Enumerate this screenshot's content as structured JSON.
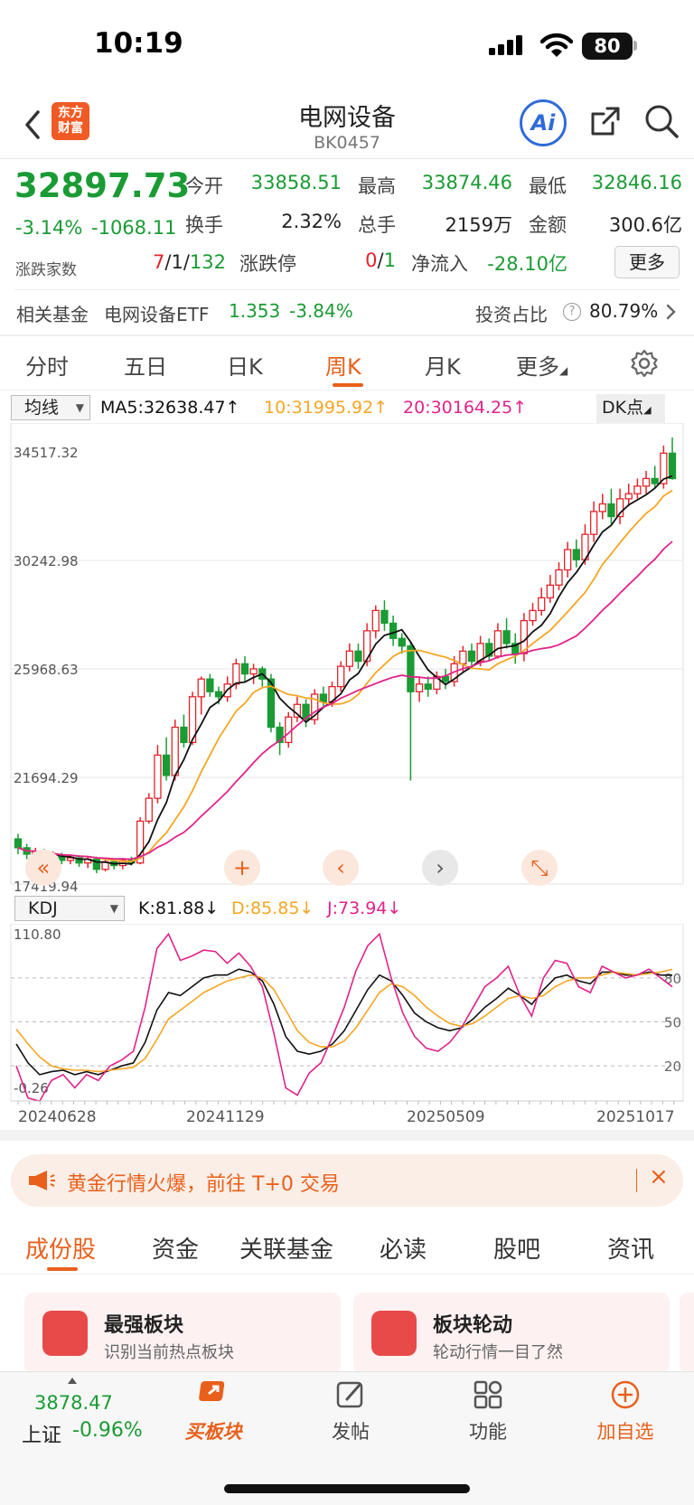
{
  "status_bar": {
    "time": "10:19",
    "battery": "80"
  },
  "nav": {
    "title": "电网设备",
    "code": "BK0457",
    "logo_line1": "东方",
    "logo_line2": "财富",
    "ai_label": "Ai"
  },
  "quote": {
    "price": "32897.73",
    "change_pct": "-3.14%",
    "change_amt": "-1068.11",
    "counts_label": "涨跌家数",
    "counts_up": "7",
    "counts_mid": "1",
    "counts_down": "132",
    "limit_label": "涨跌停",
    "limit_up": "0",
    "limit_down": "1",
    "open_label": "今开",
    "open": "33858.51",
    "high_label": "最高",
    "high": "33874.46",
    "low_label": "最低",
    "low": "32846.16",
    "turnover_label": "换手",
    "turnover": "2.32%",
    "volume_label": "总手",
    "volume": "2159万",
    "amount_label": "金额",
    "amount": "300.6亿",
    "inflow_label": "净流入",
    "inflow": "-28.10亿",
    "more_label": "更多"
  },
  "fund": {
    "label": "相关基金",
    "name": "电网设备ETF",
    "price": "1.353",
    "change": "-3.84%",
    "ratio_label": "投资占比",
    "ratio": "80.79%"
  },
  "period_tabs": [
    "分时",
    "五日",
    "日K",
    "周K",
    "月K",
    "更多"
  ],
  "active_period": "周K",
  "ma_row": {
    "selector": "均线",
    "ma5": "MA5:32638.47↑",
    "ma10": "10:31995.92↑",
    "ma20": "20:30164.25↑",
    "dk": "DK点"
  },
  "kdj_row": {
    "selector": "KDJ",
    "k": "K:81.88↓",
    "d": "D:85.85↓",
    "j": "J:73.94↓"
  },
  "colors": {
    "up": "#e3242b",
    "down": "#1a9b34",
    "ma5": "#111111",
    "ma10": "#f5a623",
    "ma20": "#e0238a",
    "accent": "#e8601c"
  },
  "chart_data": [
    {
      "type": "candlestick",
      "title": "",
      "y_ticks": [
        "34517.32",
        "30242.98",
        "25968.63",
        "21694.29",
        "17419.94"
      ],
      "x_ticks": [
        "20240628",
        "20241129",
        "20250509",
        "20251017"
      ],
      "candles": [
        [
          18700,
          18350,
          18900,
          18100
        ],
        [
          18350,
          18100,
          18500,
          17900
        ],
        [
          18100,
          18200,
          18350,
          17950
        ],
        [
          18200,
          17900,
          18300,
          17700
        ],
        [
          17900,
          18050,
          18200,
          17800
        ],
        [
          18050,
          17850,
          18150,
          17700
        ],
        [
          17850,
          17950,
          18050,
          17700
        ],
        [
          17950,
          17750,
          18050,
          17600
        ],
        [
          17750,
          17900,
          18000,
          17550
        ],
        [
          17900,
          17500,
          18000,
          17350
        ],
        [
          17500,
          17800,
          17900,
          17420
        ],
        [
          17800,
          17650,
          17900,
          17500
        ],
        [
          17650,
          17850,
          17950,
          17500
        ],
        [
          17850,
          17750,
          18000,
          17650
        ],
        [
          17750,
          19400,
          19550,
          17700
        ],
        [
          19400,
          20300,
          20500,
          19300
        ],
        [
          20300,
          22000,
          22400,
          20100
        ],
        [
          22000,
          21200,
          22700,
          21000
        ],
        [
          21200,
          23100,
          23400,
          21000
        ],
        [
          23100,
          22500,
          23600,
          22300
        ],
        [
          22500,
          24300,
          24500,
          22400
        ],
        [
          24300,
          25000,
          25100,
          23600
        ],
        [
          25000,
          24500,
          25200,
          24300
        ],
        [
          24500,
          24300,
          24700,
          24000
        ],
        [
          24300,
          24800,
          25100,
          24100
        ],
        [
          24800,
          25600,
          25800,
          24600
        ],
        [
          25600,
          25200,
          25900,
          24900
        ],
        [
          25200,
          25400,
          25600,
          24800
        ],
        [
          25400,
          25000,
          25500,
          24700
        ],
        [
          25000,
          23100,
          25200,
          22900
        ],
        [
          23100,
          22500,
          23300,
          22000
        ],
        [
          22500,
          23500,
          23700,
          22300
        ],
        [
          23500,
          24000,
          24300,
          23300
        ],
        [
          24000,
          23400,
          24200,
          23100
        ],
        [
          23400,
          24400,
          24600,
          23200
        ],
        [
          24400,
          24100,
          24700,
          23900
        ],
        [
          24100,
          24700,
          24900,
          23900
        ],
        [
          24700,
          25500,
          25700,
          24500
        ],
        [
          25500,
          26100,
          26400,
          25300
        ],
        [
          26100,
          25700,
          26400,
          25400
        ],
        [
          25700,
          26900,
          27200,
          25500
        ],
        [
          26900,
          27700,
          27900,
          26600
        ],
        [
          27700,
          27200,
          28100,
          26900
        ],
        [
          27200,
          26600,
          27500,
          26300
        ],
        [
          26600,
          26300,
          26800,
          26000
        ],
        [
          26300,
          24500,
          26500,
          21000
        ],
        [
          24500,
          24800,
          25100,
          24100
        ],
        [
          24800,
          24600,
          25100,
          24300
        ],
        [
          24600,
          25100,
          25300,
          24400
        ],
        [
          25100,
          24900,
          25400,
          24600
        ],
        [
          24900,
          25600,
          25900,
          24700
        ],
        [
          25600,
          26100,
          26300,
          25300
        ],
        [
          26100,
          25700,
          26400,
          25400
        ],
        [
          25700,
          26400,
          26700,
          25500
        ],
        [
          26400,
          25900,
          26600,
          25700
        ],
        [
          25900,
          26900,
          27200,
          25800
        ],
        [
          26900,
          26400,
          27400,
          26200
        ],
        [
          26400,
          26000,
          26800,
          25600
        ],
        [
          26000,
          27300,
          27600,
          25700
        ],
        [
          27300,
          27700,
          28000,
          27100
        ],
        [
          27700,
          28200,
          28600,
          27500
        ],
        [
          28200,
          28700,
          29100,
          28000
        ],
        [
          28700,
          29300,
          29600,
          28500
        ],
        [
          29300,
          30100,
          30400,
          29000
        ],
        [
          30100,
          29700,
          30500,
          29400
        ],
        [
          29700,
          30700,
          31100,
          29500
        ],
        [
          30700,
          31600,
          32000,
          30400
        ],
        [
          31600,
          31900,
          32300,
          31300
        ],
        [
          31900,
          31400,
          32500,
          31100
        ],
        [
          31400,
          32100,
          32500,
          31100
        ],
        [
          32100,
          32300,
          32700,
          31800
        ],
        [
          32300,
          32600,
          32900,
          32100
        ],
        [
          32600,
          32900,
          33200,
          32300
        ],
        [
          32900,
          32700,
          33400,
          32500
        ],
        [
          32700,
          33900,
          34200,
          32500
        ],
        [
          33900,
          32900,
          34517,
          32850
        ]
      ]
    },
    {
      "type": "line",
      "title": "",
      "y_ticks": [
        "110.80",
        "80",
        "50",
        "20",
        "-0.26"
      ],
      "series": [
        {
          "name": "K",
          "values": [
            35,
            22,
            14,
            16,
            17,
            14,
            16,
            14,
            17,
            20,
            22,
            36,
            58,
            70,
            68,
            74,
            80,
            82,
            82,
            86,
            84,
            78,
            62,
            40,
            30,
            28,
            30,
            35,
            44,
            58,
            72,
            82,
            78,
            68,
            56,
            50,
            46,
            44,
            46,
            52,
            60,
            66,
            73,
            68,
            62,
            72,
            80,
            82,
            78,
            76,
            84,
            84,
            82,
            82,
            84,
            82,
            81.88
          ]
        },
        {
          "name": "D",
          "values": [
            45,
            35,
            26,
            20,
            18,
            17,
            17,
            16,
            17,
            18,
            19,
            25,
            38,
            52,
            58,
            64,
            70,
            74,
            78,
            80,
            82,
            80,
            72,
            58,
            44,
            36,
            33,
            33,
            37,
            46,
            58,
            70,
            76,
            74,
            68,
            60,
            54,
            49,
            47,
            49,
            54,
            60,
            66,
            68,
            66,
            68,
            74,
            78,
            80,
            80,
            82,
            84,
            83,
            82,
            83,
            84,
            85.85
          ]
        },
        {
          "name": "J",
          "values": [
            20,
            -2,
            -4,
            10,
            14,
            5,
            14,
            10,
            20,
            24,
            30,
            60,
            100,
            110,
            92,
            95,
            99,
            98,
            90,
            97,
            88,
            74,
            42,
            5,
            0,
            15,
            22,
            40,
            60,
            85,
            102,
            110,
            80,
            56,
            40,
            32,
            30,
            36,
            46,
            60,
            74,
            80,
            88,
            68,
            54,
            80,
            92,
            90,
            74,
            70,
            88,
            84,
            80,
            82,
            86,
            80,
            73.94
          ]
        }
      ]
    }
  ],
  "chart_controls": [
    "«",
    "+",
    "‹",
    "›",
    "⤡"
  ],
  "notice": {
    "text": "黄金行情火爆，前往 T+0 交易",
    "close": "×"
  },
  "sub_tabs": [
    "成份股",
    "资金",
    "关联基金",
    "必读",
    "股吧",
    "资讯"
  ],
  "cards": [
    {
      "title": "最强板块",
      "sub": "识别当前热点板块"
    },
    {
      "title": "板块轮动",
      "sub": "轮动行情一目了然"
    }
  ],
  "bottom_bar": {
    "index_price": "3878.47",
    "index_name": "上证",
    "index_change": "-0.96%",
    "items": [
      "买板块",
      "发帖",
      "功能",
      "加自选"
    ]
  }
}
